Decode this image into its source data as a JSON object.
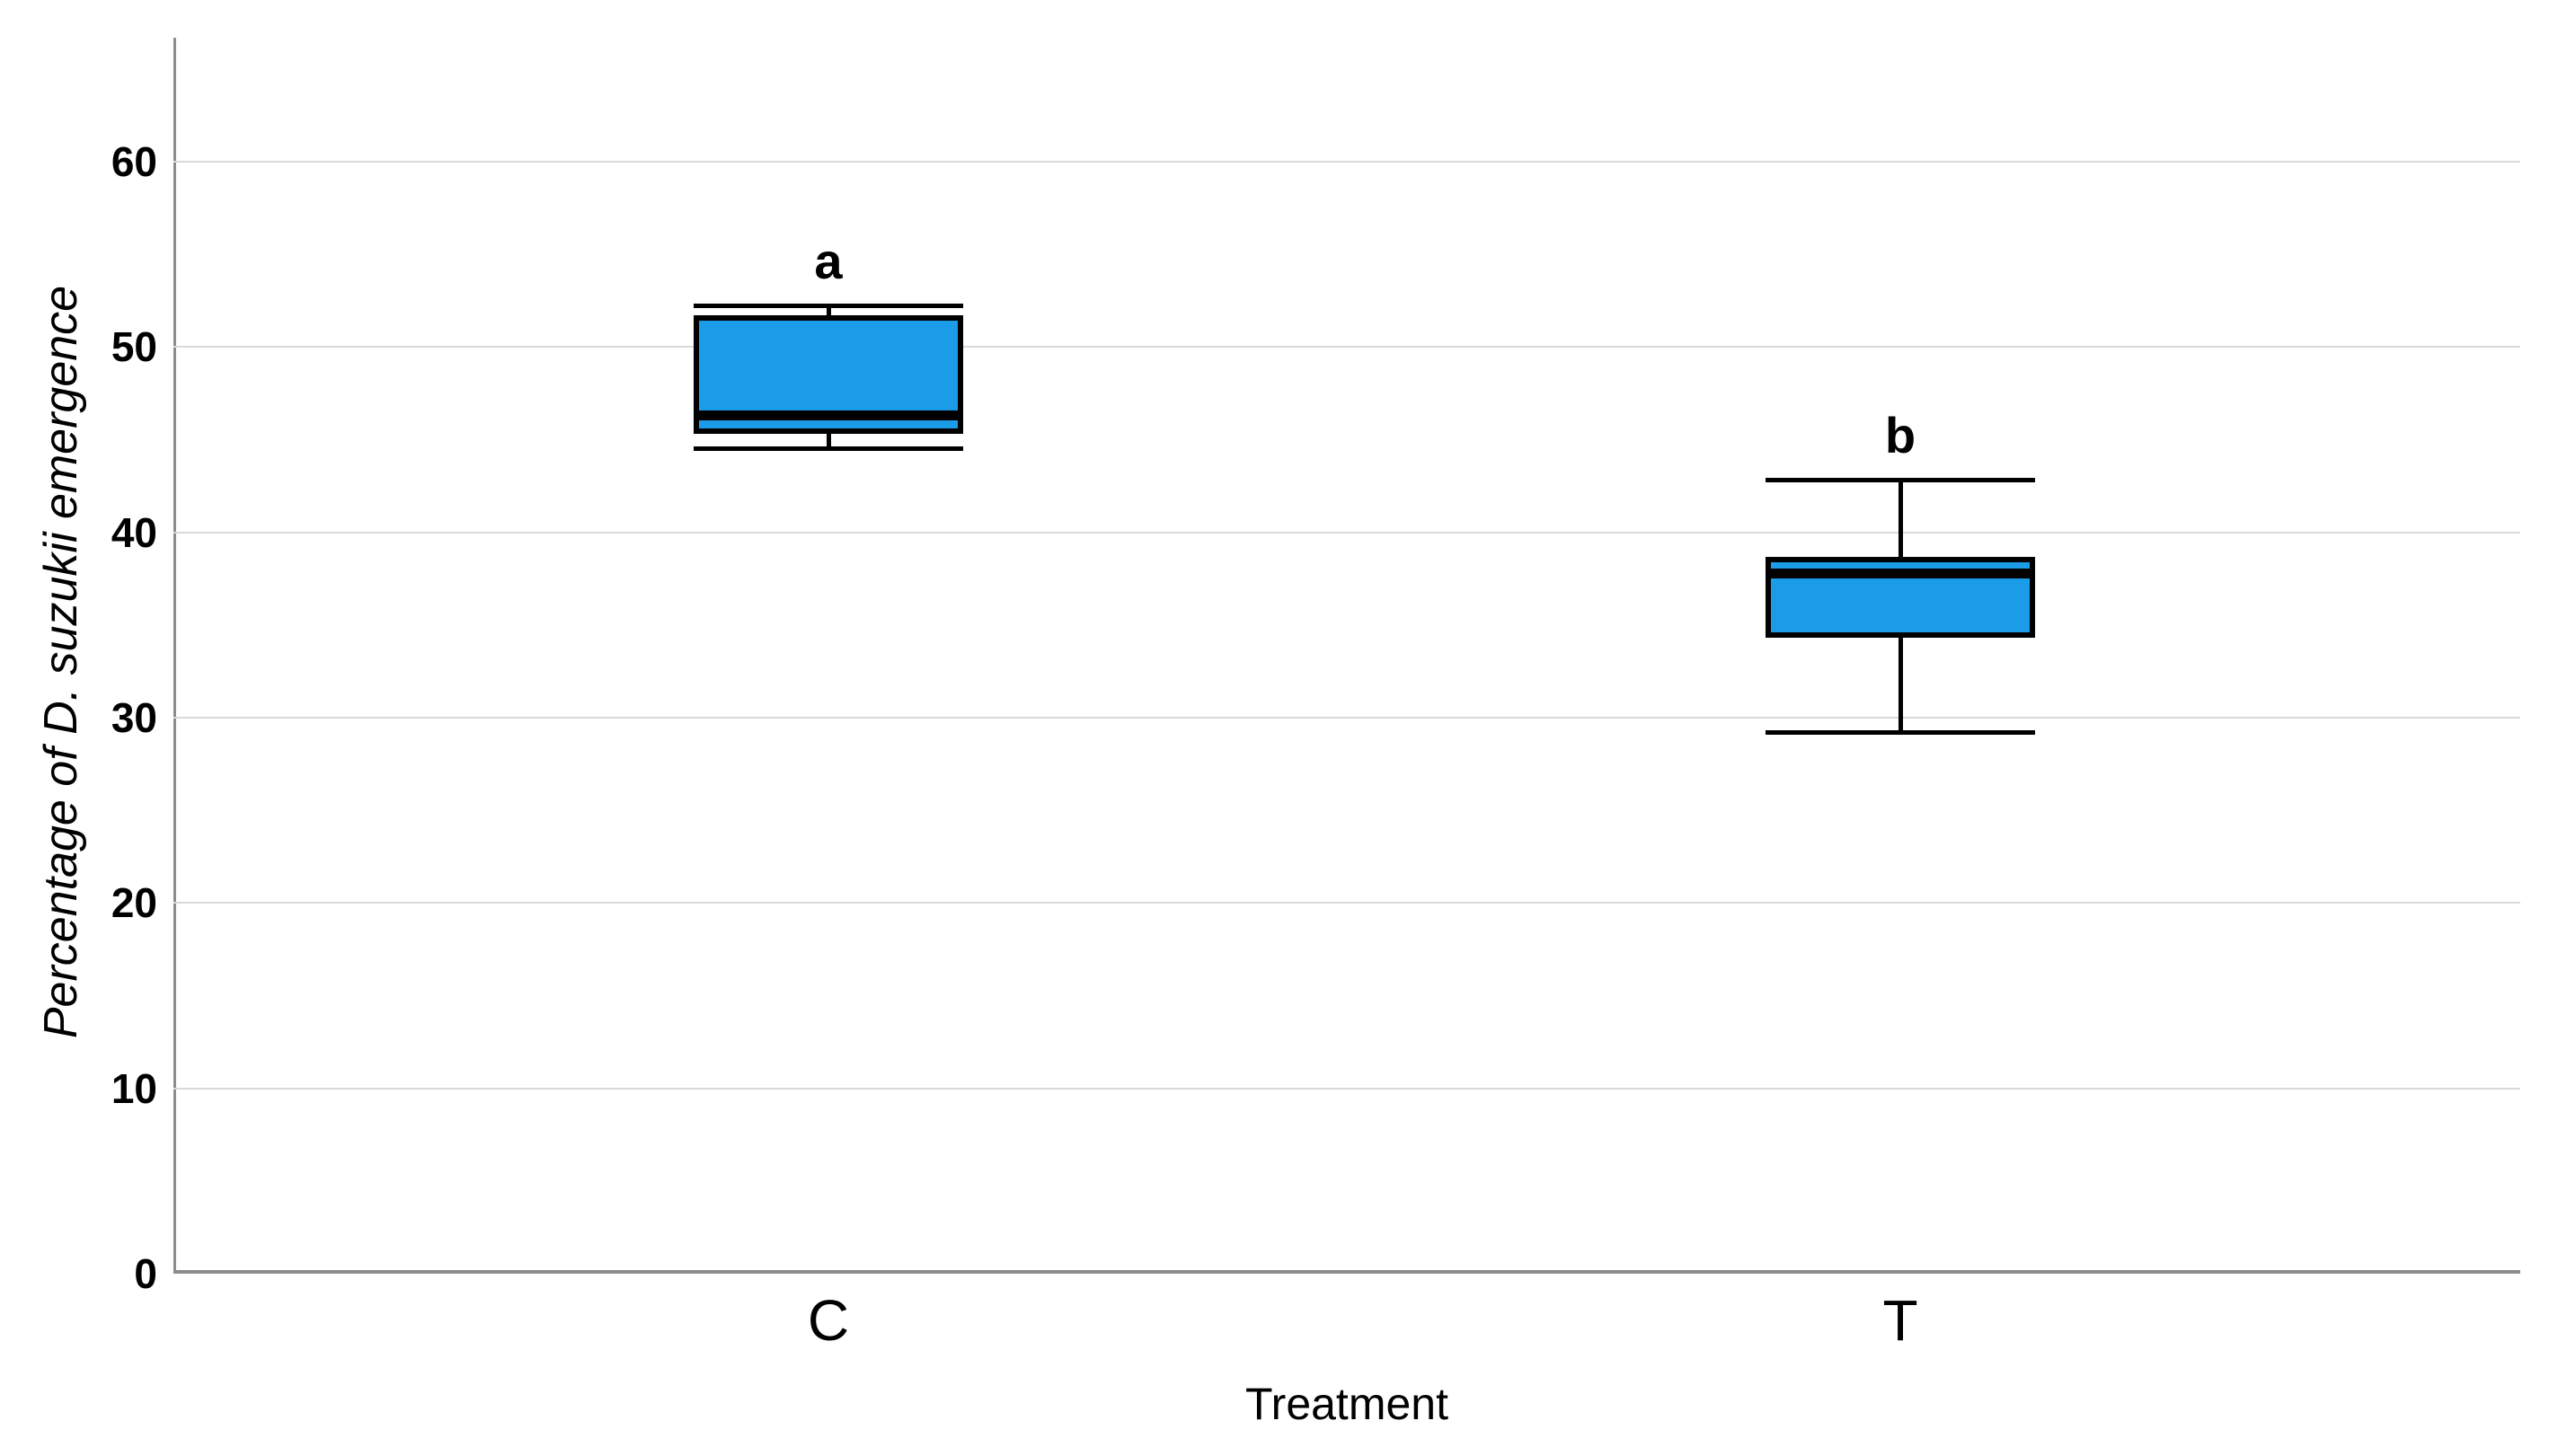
{
  "chart_data": {
    "type": "boxplot",
    "title": "",
    "xlabel": "Treatment",
    "ylabel": "Percentage of D. suzukii emergence",
    "ylabel_style": "italic",
    "categories": [
      "C",
      "T"
    ],
    "series": [
      {
        "category": "C",
        "whisker_low": 44.5,
        "q1": 45.3,
        "median": 46.3,
        "q3": 51.7,
        "whisker_high": 52.2,
        "significance_label": "a"
      },
      {
        "category": "T",
        "whisker_low": 29.2,
        "q1": 34.3,
        "median": 37.8,
        "q3": 38.7,
        "whisker_high": 42.8,
        "significance_label": "b"
      }
    ],
    "yticks": [
      0,
      10,
      20,
      30,
      40,
      50,
      60
    ],
    "ylim": [
      0,
      66.7
    ],
    "grid": true,
    "legend": "none",
    "colors": {
      "box_fill": "#1B9CE8",
      "box_border": "#000000",
      "median_line": "#000000",
      "whisker": "#000000",
      "gridline": "#D9D9D9",
      "axis_line": "#8C8C8C",
      "text": "#000000"
    }
  }
}
